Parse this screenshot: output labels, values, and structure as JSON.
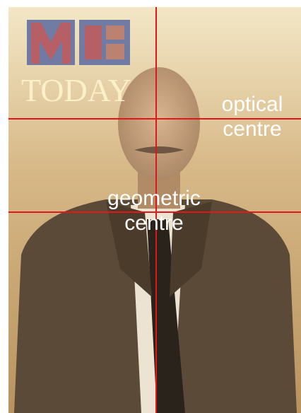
{
  "image": {
    "masthead": "TODAY",
    "annotations": [
      {
        "lines": [
          "optical",
          "centre"
        ]
      },
      {
        "lines": [
          "geometric",
          "centre"
        ]
      }
    ]
  }
}
